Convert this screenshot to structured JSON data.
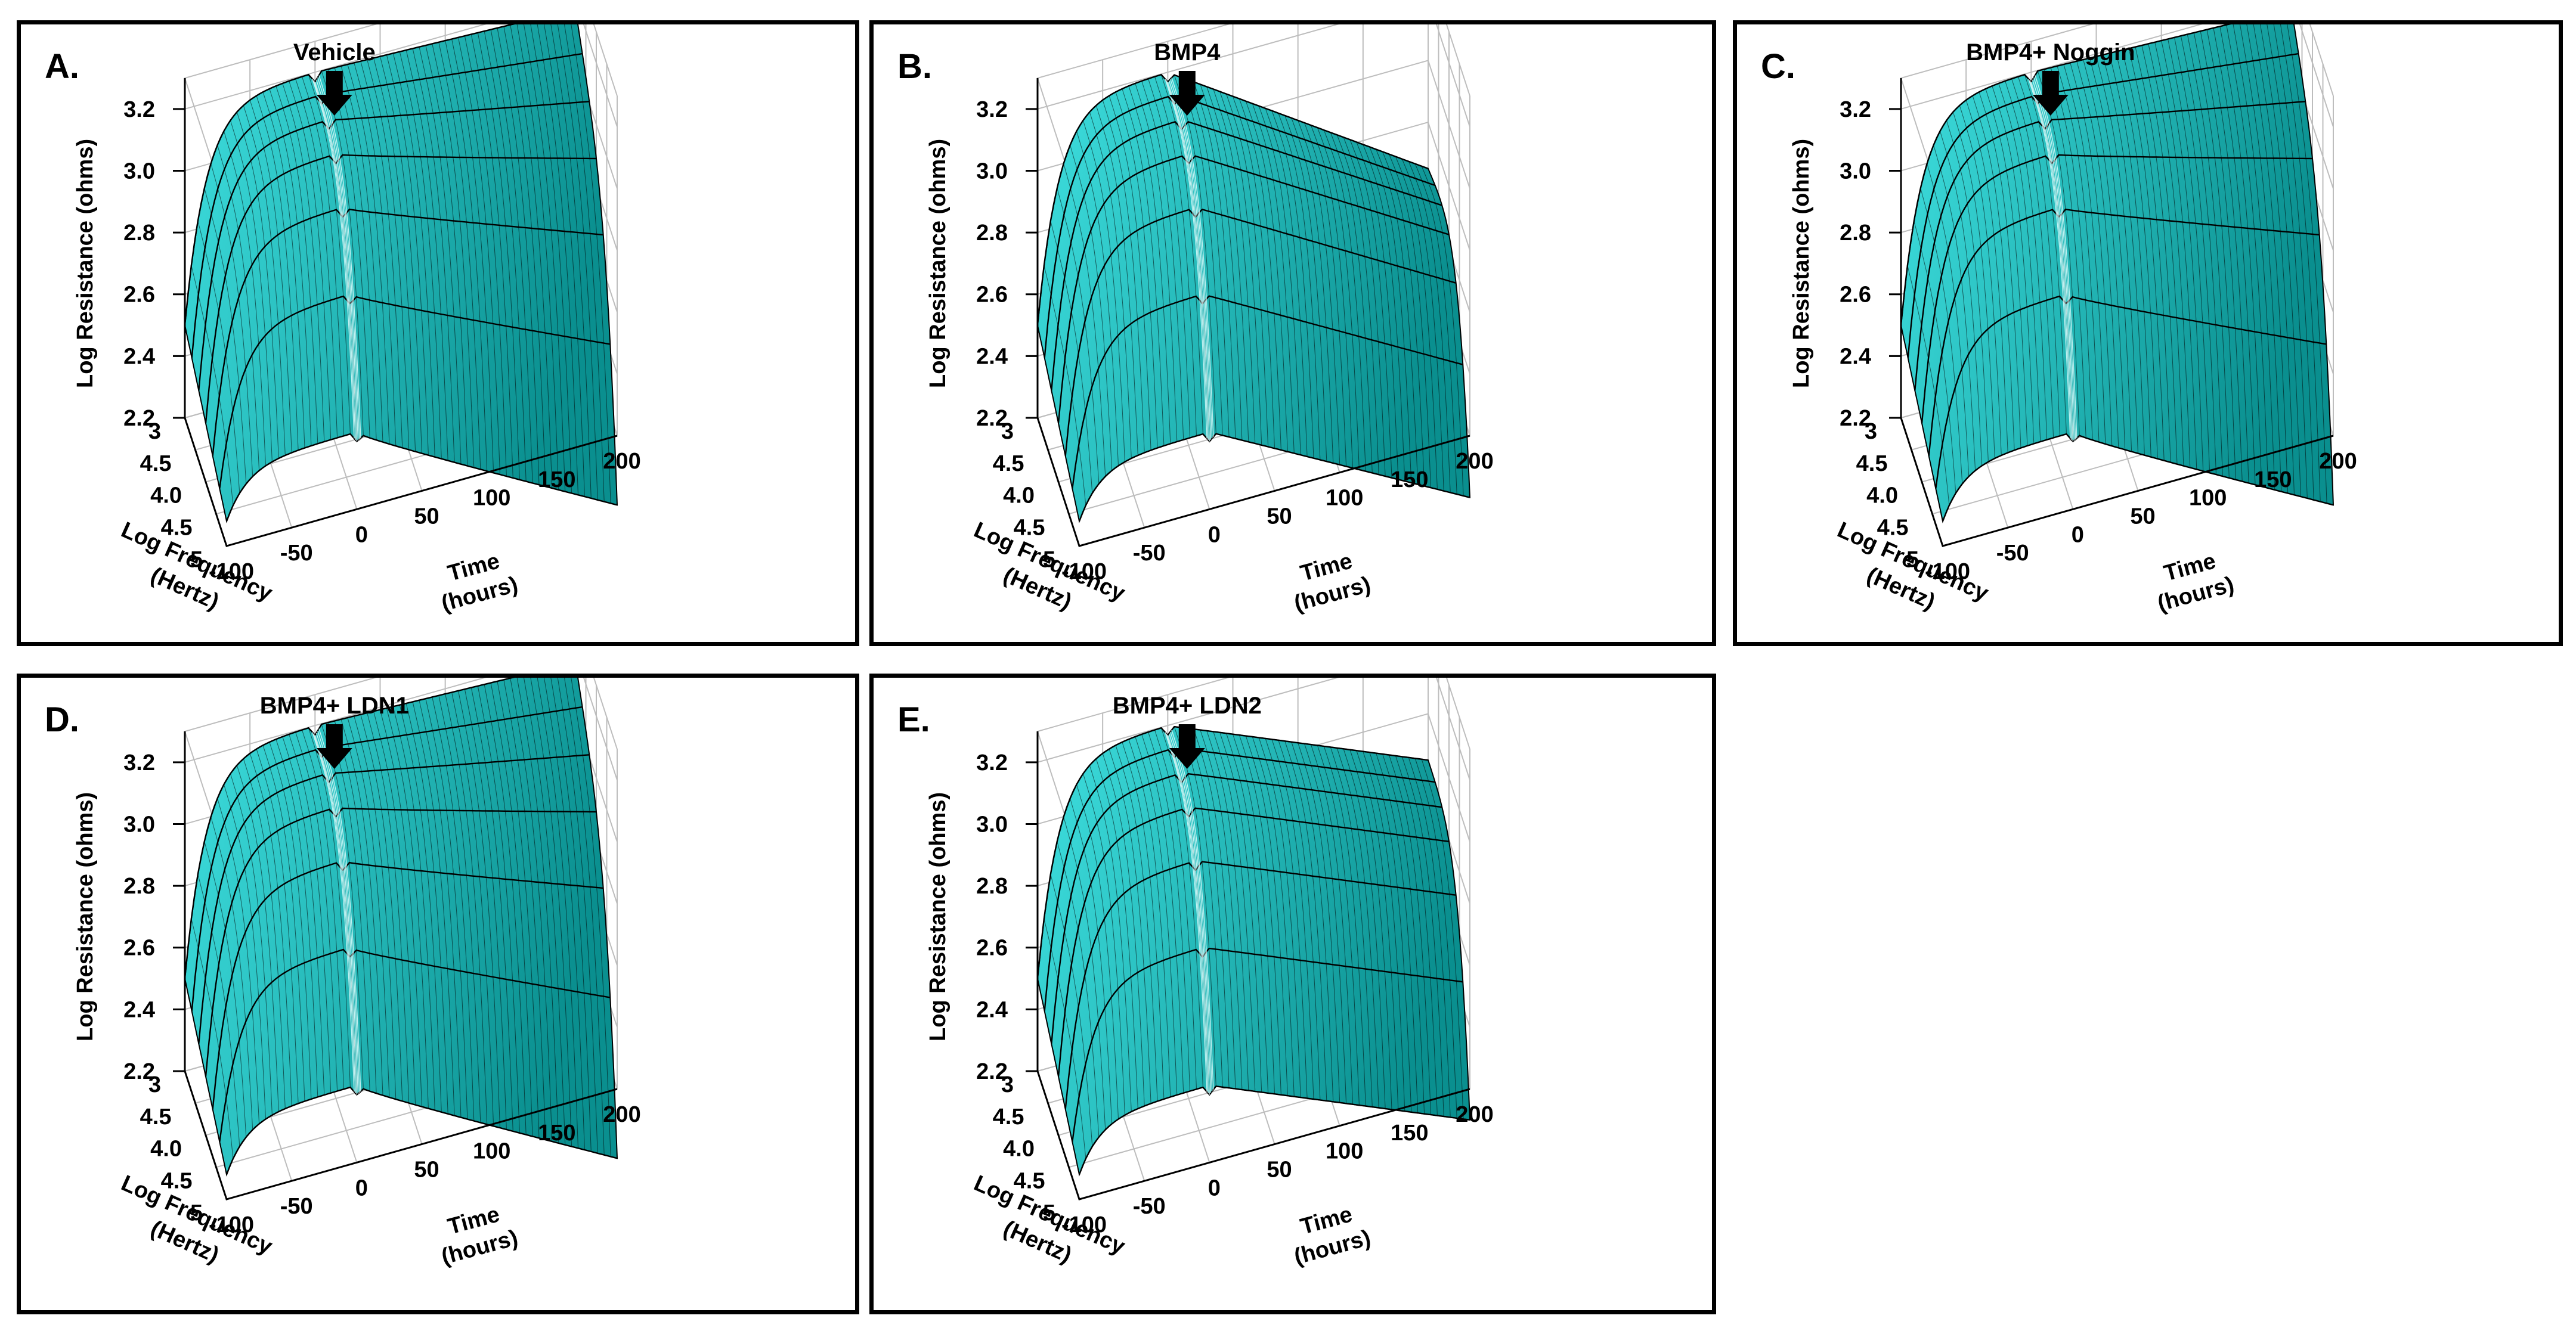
{
  "figure": {
    "panels": [
      {
        "label": "A.",
        "title": "Vehicle"
      },
      {
        "label": "B.",
        "title": "BMP4"
      },
      {
        "label": "C.",
        "title": "BMP4+ Noggin"
      },
      {
        "label": "D.",
        "title": "BMP4+ LDN1"
      },
      {
        "label": "E.",
        "title": "BMP4+ LDN2"
      }
    ],
    "colors": {
      "surface_light": "#3fe0e0",
      "surface_dark": "#0a8f8f",
      "mesh": "#000000",
      "grid": "#bdbdbd"
    }
  },
  "chart_data": [
    {
      "type": "surface",
      "label": "A.",
      "title": "Vehicle",
      "profile": "flat",
      "zlabel": "Log Resistance (ohms)",
      "ylabel_line1": "Log Frequency",
      "ylabel_line2": "(Hertz)",
      "xlabel_line1": "Time",
      "xlabel_line2": "(hours)",
      "z_ticks": [
        "2.2",
        "2.4",
        "2.6",
        "2.8",
        "3.0",
        "3.2"
      ],
      "freq_ticks": [
        "3",
        "4.5",
        "4.0",
        "4.5",
        "5"
      ],
      "time_ticks": [
        "-100",
        "-50",
        "0",
        "50",
        "100",
        "150",
        "200"
      ],
      "zlim": [
        2.2,
        3.3
      ],
      "time_range": [
        -100,
        200
      ],
      "freq_range": [
        3,
        5
      ],
      "treatment_time_hours": 0,
      "end_resistance": {
        "low_freq": 3.17,
        "high_freq": 2.55
      }
    },
    {
      "type": "surface",
      "label": "B.",
      "title": "BMP4",
      "profile": "decline",
      "zlabel": "Log Resistance (ohms)",
      "ylabel_line1": "Log Frequency",
      "ylabel_line2": "(Hertz)",
      "xlabel_line1": "Time",
      "xlabel_line2": "(hours)",
      "z_ticks": [
        "2.2",
        "2.4",
        "2.6",
        "2.8",
        "3.0",
        "3.2"
      ],
      "freq_ticks": [
        "3",
        "4.5",
        "4.0",
        "4.5",
        "5"
      ],
      "time_ticks": [
        "-100",
        "-50",
        "0",
        "50",
        "100",
        "150",
        "200"
      ],
      "zlim": [
        2.2,
        3.3
      ],
      "time_range": [
        -100,
        200
      ],
      "freq_range": [
        3,
        5
      ],
      "treatment_time_hours": 0,
      "end_resistance": {
        "low_freq": 2.65,
        "high_freq": 2.4
      }
    },
    {
      "type": "surface",
      "label": "C.",
      "title": "BMP4+ Noggin",
      "profile": "flat",
      "zlabel": "Log Resistance (ohms)",
      "ylabel_line1": "Log Frequency",
      "ylabel_line2": "(Hertz)",
      "xlabel_line1": "Time",
      "xlabel_line2": "(hours)",
      "z_ticks": [
        "2.2",
        "2.4",
        "2.6",
        "2.8",
        "3.0",
        "3.2"
      ],
      "freq_ticks": [
        "3",
        "4.5",
        "4.0",
        "4.5",
        "5"
      ],
      "time_ticks": [
        "-100",
        "-50",
        "0",
        "50",
        "100",
        "150",
        "200"
      ],
      "zlim": [
        2.2,
        3.3
      ],
      "time_range": [
        -100,
        200
      ],
      "freq_range": [
        3,
        5
      ],
      "treatment_time_hours": 0,
      "end_resistance": {
        "low_freq": 3.17,
        "high_freq": 2.55
      }
    },
    {
      "type": "surface",
      "label": "D.",
      "title": "BMP4+ LDN1",
      "profile": "flat",
      "zlabel": "Log Resistance (ohms)",
      "ylabel_line1": "Log Frequency",
      "ylabel_line2": "(Hertz)",
      "xlabel_line1": "Time",
      "xlabel_line2": "(hours)",
      "z_ticks": [
        "2.2",
        "2.4",
        "2.6",
        "2.8",
        "3.0",
        "3.2"
      ],
      "freq_ticks": [
        "3",
        "4.5",
        "4.0",
        "4.5",
        "5"
      ],
      "time_ticks": [
        "-100",
        "-50",
        "0",
        "50",
        "100",
        "150",
        "200"
      ],
      "zlim": [
        2.2,
        3.3
      ],
      "time_range": [
        -100,
        200
      ],
      "freq_range": [
        3,
        5
      ],
      "treatment_time_hours": 0,
      "end_resistance": {
        "low_freq": 3.15,
        "high_freq": 2.55
      }
    },
    {
      "type": "surface",
      "label": "E.",
      "title": "BMP4+ LDN2",
      "profile": "partial-decline",
      "zlabel": "Log Resistance (ohms)",
      "ylabel_line1": "Log Frequency",
      "ylabel_line2": "(Hertz)",
      "xlabel_line1": "Time",
      "xlabel_line2": "(hours)",
      "z_ticks": [
        "2.2",
        "2.4",
        "2.6",
        "2.8",
        "3.0",
        "3.2"
      ],
      "freq_ticks": [
        "3",
        "4.5",
        "4.0",
        "4.5",
        "5"
      ],
      "time_ticks": [
        "-100",
        "-50",
        "0",
        "50",
        "100",
        "150",
        "200"
      ],
      "zlim": [
        2.2,
        3.3
      ],
      "time_range": [
        -100,
        200
      ],
      "freq_range": [
        3,
        5
      ],
      "treatment_time_hours": 0,
      "end_resistance": {
        "low_freq": 2.85,
        "high_freq": 2.45
      }
    }
  ]
}
